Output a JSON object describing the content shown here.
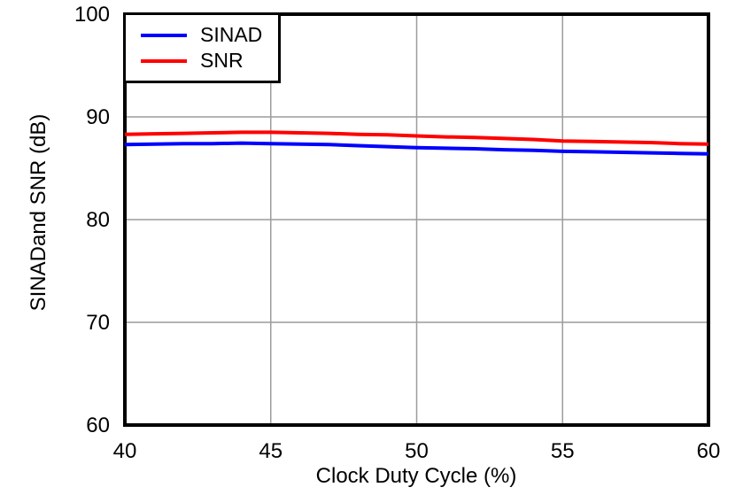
{
  "chart_data": {
    "type": "line",
    "title": "",
    "xlabel": "Clock Duty Cycle (%)",
    "ylabel": "SINADand SNR (dB)",
    "xlim": [
      40,
      60
    ],
    "ylim": [
      60,
      100
    ],
    "x_ticks": [
      "40",
      "45",
      "50",
      "55",
      "60"
    ],
    "x_tick_values": [
      40,
      45,
      50,
      55,
      60
    ],
    "y_ticks": [
      "60",
      "70",
      "80",
      "90",
      "100"
    ],
    "y_tick_values": [
      60,
      70,
      80,
      90,
      100
    ],
    "x_gridlines": [
      45,
      50,
      55
    ],
    "y_gridlines": [
      70,
      80,
      90
    ],
    "grid": true,
    "legend_position": "top-left",
    "x": [
      40,
      41,
      42,
      43,
      44,
      45,
      46,
      47,
      48,
      49,
      50,
      51,
      52,
      53,
      54,
      55,
      56,
      57,
      58,
      59,
      60
    ],
    "series": [
      {
        "name": "SINAD",
        "color": "#0000ff",
        "values": [
          87.3,
          87.35,
          87.4,
          87.4,
          87.45,
          87.4,
          87.35,
          87.3,
          87.2,
          87.1,
          87.0,
          86.95,
          86.9,
          86.8,
          86.75,
          86.65,
          86.6,
          86.55,
          86.5,
          86.45,
          86.4
        ]
      },
      {
        "name": "SNR",
        "color": "#ff0000",
        "values": [
          88.3,
          88.35,
          88.4,
          88.45,
          88.5,
          88.5,
          88.45,
          88.4,
          88.3,
          88.25,
          88.15,
          88.05,
          88.0,
          87.9,
          87.8,
          87.65,
          87.6,
          87.55,
          87.5,
          87.4,
          87.35
        ]
      }
    ],
    "colors": {
      "grid": "#9c9c9c",
      "axis_border": "#000000",
      "background": "#ffffff",
      "text": "#000000"
    }
  }
}
